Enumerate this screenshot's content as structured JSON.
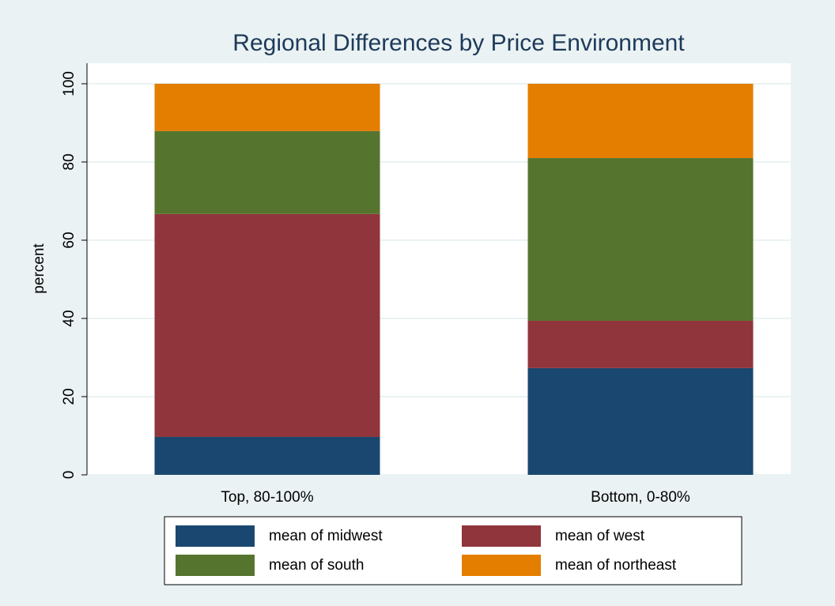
{
  "chart_data": {
    "type": "stacked_bar",
    "title": "Regional Differences by Price Environment",
    "y_label": "percent",
    "categories": [
      "Top, 80-100%",
      "Bottom, 0-80%"
    ],
    "series": [
      {
        "name": "mean of midwest",
        "color": "#1a476f",
        "values": [
          9.7,
          27.3
        ]
      },
      {
        "name": "mean of west",
        "color": "#90353b",
        "values": [
          57.0,
          12.1
        ]
      },
      {
        "name": "mean of south",
        "color": "#55752f",
        "values": [
          21.2,
          41.6
        ]
      },
      {
        "name": "mean of northeast",
        "color": "#e37e00",
        "values": [
          12.1,
          19.0
        ]
      }
    ],
    "ylim": [
      0,
      100
    ],
    "yticks": [
      0,
      20,
      40,
      60,
      80,
      100
    ],
    "grid": true
  }
}
